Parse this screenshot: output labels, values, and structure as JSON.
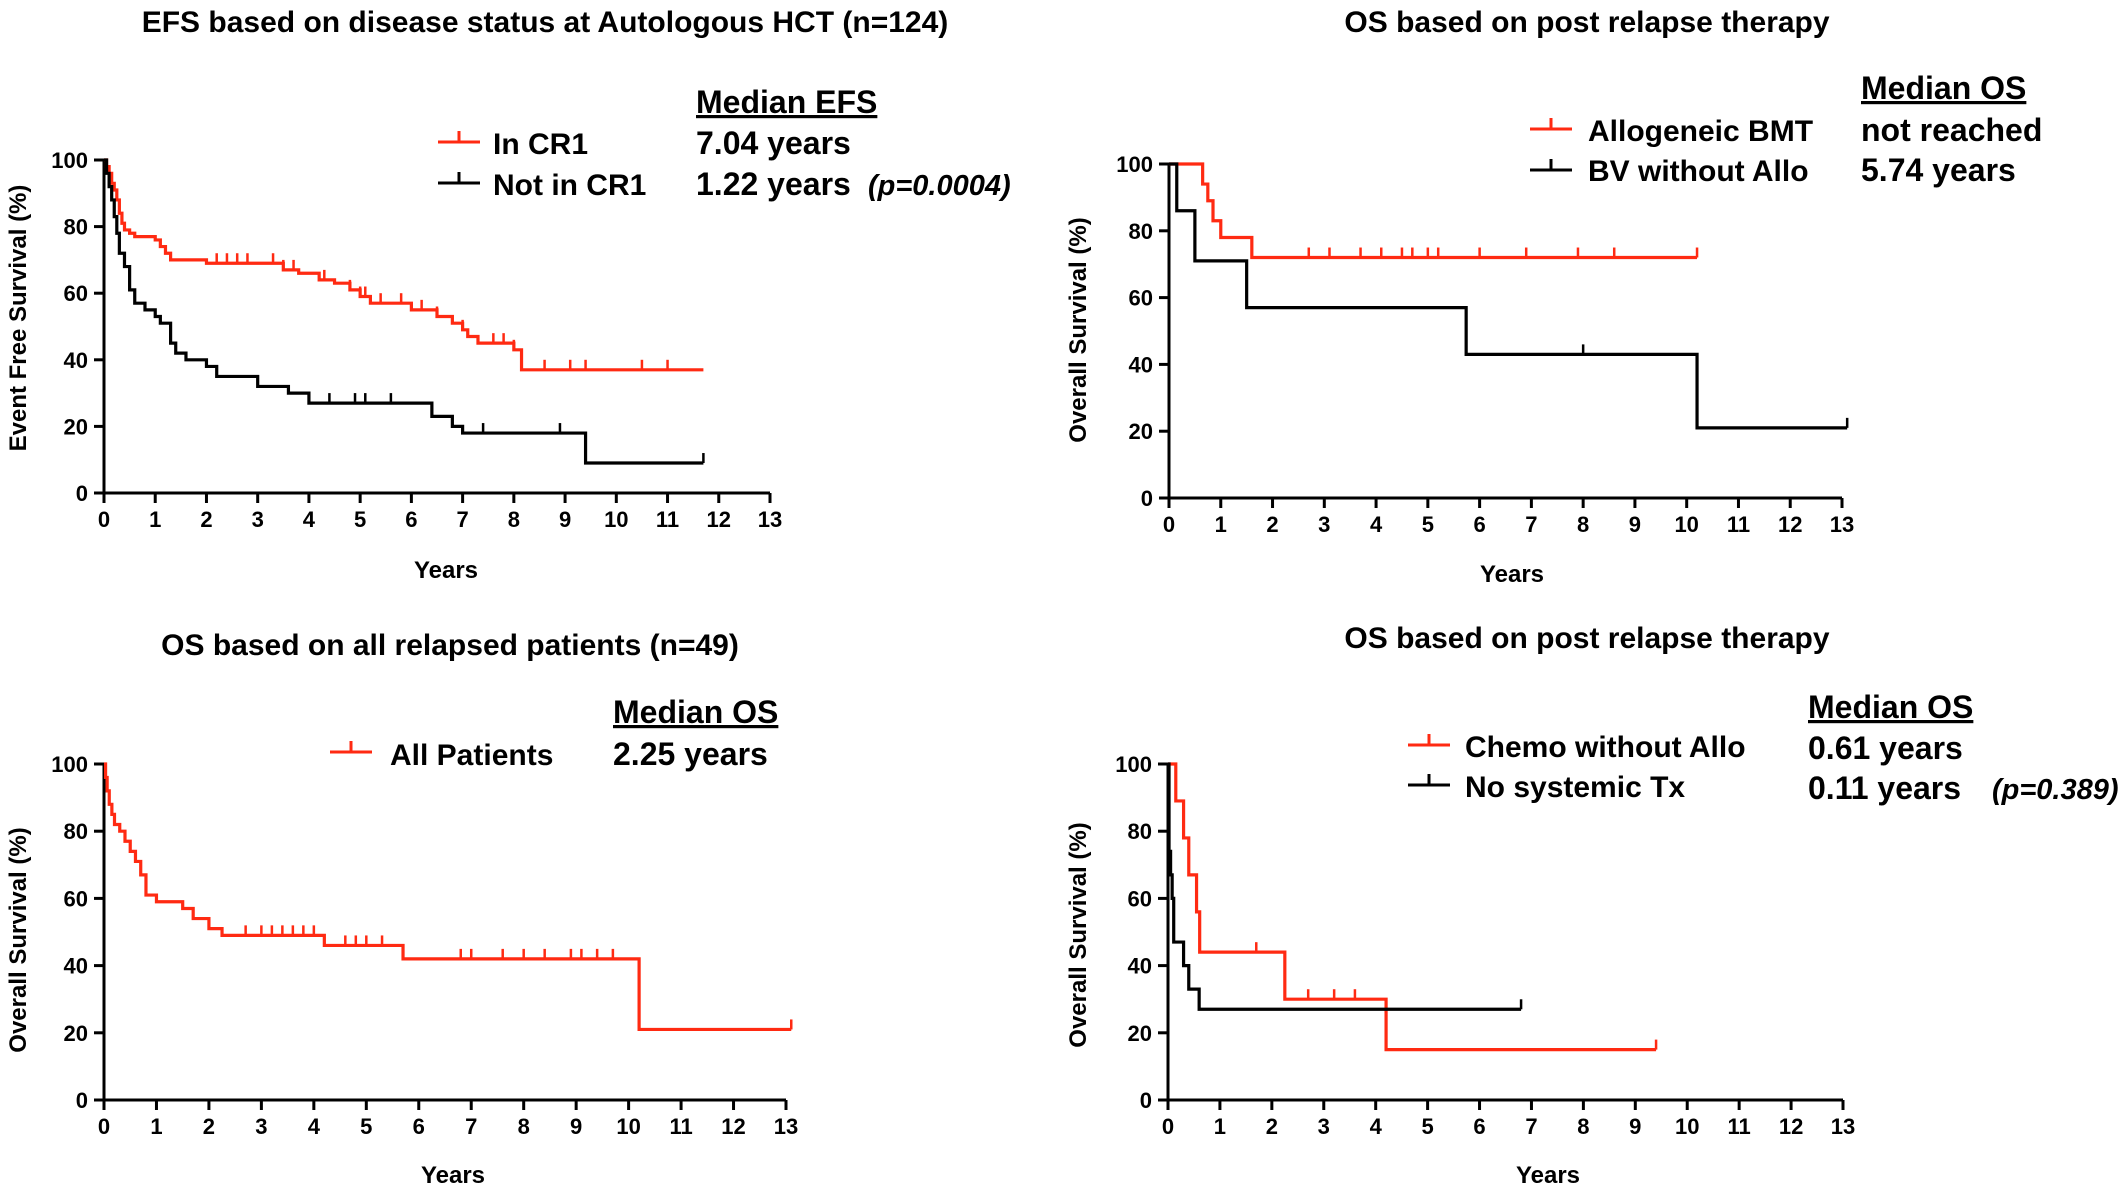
{
  "colors": {
    "red": "#ff2a12",
    "black": "#000000"
  },
  "chart_data": [
    {
      "type": "line",
      "title": "EFS based on disease status at Autologous HCT (n=124)",
      "xlabel": "Years",
      "ylabel": "Event Free Survival (%)",
      "xlim": [
        0,
        13
      ],
      "ylim": [
        0,
        100
      ],
      "xticks": [
        "0",
        "1",
        "2",
        "3",
        "4",
        "5",
        "6",
        "7",
        "8",
        "9",
        "10",
        "11",
        "12",
        "13"
      ],
      "yticks": [
        "0",
        "20",
        "40",
        "60",
        "80",
        "100"
      ],
      "legend_header": "Median EFS",
      "note": "(p=0.0004)",
      "series": [
        {
          "name": "In CR1",
          "color": "#ff2a12",
          "median": "7.04 years",
          "x": [
            0,
            0.05,
            0.1,
            0.15,
            0.2,
            0.25,
            0.3,
            0.35,
            0.4,
            0.5,
            0.6,
            0.8,
            1.0,
            1.1,
            1.2,
            1.3,
            1.5,
            1.7,
            2.0,
            2.2,
            2.5,
            2.8,
            3.0,
            3.5,
            3.8,
            4.0,
            4.2,
            4.5,
            4.7,
            4.8,
            5.0,
            5.2,
            5.5,
            6.0,
            6.3,
            6.5,
            6.8,
            7.0,
            7.1,
            7.3,
            7.5,
            7.7,
            8.0,
            8.15,
            8.4,
            9.0,
            10.0,
            11.7
          ],
          "y": [
            100,
            98,
            96,
            93,
            91,
            88,
            84,
            81,
            79,
            78,
            77,
            77,
            76,
            74,
            72,
            70,
            70,
            70,
            69,
            69,
            69,
            69,
            69,
            67,
            66,
            66,
            64,
            63,
            63,
            61,
            59,
            57,
            57,
            55,
            55,
            53,
            51,
            49,
            47,
            45,
            45,
            45,
            43,
            37,
            37,
            37,
            37,
            37
          ],
          "censor_x": [
            2.2,
            2.4,
            2.6,
            2.8,
            3.3,
            3.5,
            3.7,
            4.3,
            4.8,
            5.0,
            5.1,
            5.4,
            5.8,
            6.2,
            6.5,
            7.0,
            7.6,
            7.8,
            8.0,
            8.6,
            9.1,
            9.4,
            10.5,
            11.0
          ]
        },
        {
          "name": "Not in CR1",
          "color": "#000000",
          "median": "1.22 years",
          "x": [
            0,
            0.05,
            0.1,
            0.15,
            0.2,
            0.25,
            0.3,
            0.4,
            0.5,
            0.6,
            0.8,
            1.0,
            1.1,
            1.3,
            1.4,
            1.6,
            2.0,
            2.2,
            2.5,
            3.0,
            3.6,
            4.0,
            5.0,
            6.0,
            6.4,
            6.5,
            6.8,
            7.0,
            7.5,
            8.0,
            9.0,
            9.4,
            11.7
          ],
          "y": [
            100,
            96,
            92,
            88,
            83,
            78,
            72,
            68,
            61,
            57,
            55,
            53,
            51,
            45,
            42,
            40,
            38,
            35,
            35,
            32,
            30,
            27,
            27,
            27,
            23,
            23,
            20,
            18,
            18,
            18,
            18,
            9,
            9
          ],
          "censor_x": [
            4.4,
            4.9,
            5.1,
            5.6,
            7.4,
            8.9,
            11.7
          ]
        }
      ]
    },
    {
      "type": "line",
      "title": "OS based on post relapse therapy",
      "xlabel": "Years",
      "ylabel": "Overall Survival (%)",
      "xlim": [
        0,
        13
      ],
      "ylim": [
        0,
        100
      ],
      "xticks": [
        "0",
        "1",
        "2",
        "3",
        "4",
        "5",
        "6",
        "7",
        "8",
        "9",
        "10",
        "11",
        "12",
        "13"
      ],
      "yticks": [
        "0",
        "20",
        "40",
        "60",
        "80",
        "100"
      ],
      "legend_header": "Median OS",
      "note": "",
      "series": [
        {
          "name": "Allogeneic BMT",
          "color": "#ff2a12",
          "median": "not reached",
          "x": [
            0,
            0.65,
            0.75,
            0.85,
            1.0,
            1.6,
            10.2
          ],
          "y": [
            100,
            94,
            89,
            83,
            78,
            72,
            72
          ],
          "censor_x": [
            2.7,
            3.1,
            3.7,
            4.1,
            4.5,
            4.7,
            5.0,
            5.2,
            6.0,
            6.9,
            7.9,
            8.6,
            10.2
          ]
        },
        {
          "name": "BV without Allo",
          "color": "#000000",
          "median": "5.74 years",
          "x": [
            0,
            0.15,
            0.5,
            1.5,
            5.74,
            10.2,
            13.1
          ],
          "y": [
            100,
            86,
            71,
            57,
            43,
            21,
            21
          ],
          "censor_x": [
            8.0,
            13.1
          ]
        }
      ]
    },
    {
      "type": "line",
      "title": "OS based on all relapsed patients (n=49)",
      "xlabel": "Years",
      "ylabel": "Overall Survival (%)",
      "xlim": [
        0,
        13
      ],
      "ylim": [
        0,
        100
      ],
      "xticks": [
        "0",
        "1",
        "2",
        "3",
        "4",
        "5",
        "6",
        "7",
        "8",
        "9",
        "10",
        "11",
        "12",
        "13"
      ],
      "yticks": [
        "0",
        "20",
        "40",
        "60",
        "80",
        "100"
      ],
      "legend_header": "Median OS",
      "note": "",
      "series": [
        {
          "name": "All Patients",
          "color": "#ff2a12",
          "median": "2.25 years",
          "x": [
            0,
            0.03,
            0.06,
            0.1,
            0.15,
            0.2,
            0.3,
            0.4,
            0.5,
            0.6,
            0.7,
            0.8,
            1.0,
            1.5,
            1.7,
            2.0,
            2.25,
            2.5,
            4.2,
            5.0,
            5.7,
            6.5,
            8.0,
            10.2,
            13.1
          ],
          "y": [
            100,
            96,
            92,
            88,
            85,
            82,
            80,
            77,
            74,
            71,
            67,
            61,
            59,
            57,
            54,
            51,
            49,
            49,
            46,
            46,
            42,
            42,
            42,
            21,
            21
          ],
          "censor_x": [
            2.7,
            3.0,
            3.2,
            3.4,
            3.6,
            3.8,
            4.0,
            4.6,
            4.8,
            5.0,
            5.3,
            6.8,
            7.0,
            7.6,
            8.0,
            8.4,
            8.9,
            9.1,
            9.4,
            9.7,
            13.1
          ]
        }
      ]
    },
    {
      "type": "line",
      "title": "OS based on post relapse therapy",
      "xlabel": "Years",
      "ylabel": "Overall Survival (%)",
      "xlim": [
        0,
        13
      ],
      "ylim": [
        0,
        100
      ],
      "xticks": [
        "0",
        "1",
        "2",
        "3",
        "4",
        "5",
        "6",
        "7",
        "8",
        "9",
        "10",
        "11",
        "12",
        "13"
      ],
      "yticks": [
        "0",
        "20",
        "40",
        "60",
        "80",
        "100"
      ],
      "legend_header": "Median OS",
      "note": "(p=0.389)",
      "series": [
        {
          "name": "Chemo without Allo",
          "color": "#ff2a12",
          "median": "0.61 years",
          "x": [
            0,
            0.15,
            0.3,
            0.4,
            0.55,
            0.61,
            2.25,
            4.2,
            9.4
          ],
          "y": [
            100,
            89,
            78,
            67,
            56,
            44,
            30,
            15,
            15
          ],
          "censor_x": [
            1.7,
            2.7,
            3.2,
            3.6,
            9.4
          ]
        },
        {
          "name": "No systemic Tx",
          "color": "#000000",
          "median": "0.11 years",
          "x": [
            0,
            0.02,
            0.05,
            0.08,
            0.11,
            0.3,
            0.4,
            0.6,
            6.8
          ],
          "y": [
            100,
            74,
            67,
            60,
            47,
            40,
            33,
            27,
            27
          ],
          "censor_x": [
            6.8
          ]
        }
      ]
    }
  ]
}
